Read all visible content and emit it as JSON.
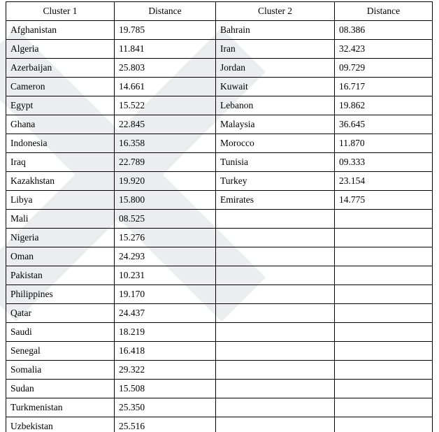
{
  "table": {
    "headers": [
      "Cluster 1",
      "Distance",
      "Cluster 2",
      "Distance"
    ],
    "rows": [
      [
        "Afghanistan",
        "19.785",
        "Bahrain",
        "08.386"
      ],
      [
        "Algeria",
        "11.841",
        "Iran",
        "32.423"
      ],
      [
        "Azerbaijan",
        "25.803",
        "Jordan",
        "09.729"
      ],
      [
        "Cameron",
        "14.661",
        "Kuwait",
        "16.717"
      ],
      [
        "Egypt",
        "15.522",
        "Lebanon",
        "19.862"
      ],
      [
        "Ghana",
        "22.845",
        "Malaysia",
        "36.645"
      ],
      [
        "Indonesia",
        "16.358",
        "Morocco",
        "11.870"
      ],
      [
        "Iraq",
        "22.789",
        "Tunisia",
        "09.333"
      ],
      [
        "Kazakhstan",
        "19.920",
        "Turkey",
        "23.154"
      ],
      [
        "Libya",
        "15.800",
        "Emirates",
        "14.775"
      ],
      [
        "Mali",
        "08.525",
        "",
        ""
      ],
      [
        "Nigeria",
        "15.276",
        "",
        ""
      ],
      [
        "Oman",
        "24.293",
        "",
        ""
      ],
      [
        "Pakistan",
        "10.231",
        "",
        ""
      ],
      [
        "Philippines",
        "19.170",
        "",
        ""
      ],
      [
        "Qatar",
        "24.437",
        "",
        ""
      ],
      [
        "Saudi",
        "18.219",
        "",
        ""
      ],
      [
        "Senegal",
        "16.418",
        "",
        ""
      ],
      [
        "Somalia",
        "29.322",
        "",
        ""
      ],
      [
        "Sudan",
        "15.508",
        "",
        ""
      ],
      [
        "Turkmenistan",
        "25.350",
        "",
        ""
      ],
      [
        "Uzbekistan",
        "25.516",
        "",
        ""
      ]
    ]
  },
  "watermark": {
    "color": "#ecedee"
  }
}
